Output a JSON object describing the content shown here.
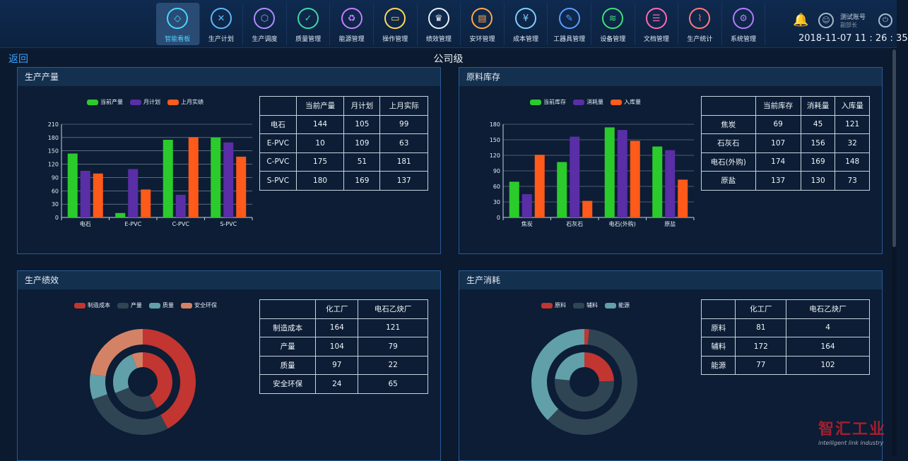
{
  "nav": [
    {
      "label": "智能看板",
      "icon": "diamond-icon",
      "glyph": "◇",
      "color": "#49d5ff"
    },
    {
      "label": "生产计划",
      "icon": "tools-icon",
      "glyph": "✕",
      "color": "#5cb8ff"
    },
    {
      "label": "生产调度",
      "icon": "cube-icon",
      "glyph": "⬡",
      "color": "#b08cff"
    },
    {
      "label": "质量管理",
      "icon": "shield-icon",
      "glyph": "✓",
      "color": "#3fd6a8"
    },
    {
      "label": "能源管理",
      "icon": "recycle-icon",
      "glyph": "♻",
      "color": "#c87cff"
    },
    {
      "label": "操作管理",
      "icon": "monitor-icon",
      "glyph": "▭",
      "color": "#ffd85a"
    },
    {
      "label": "绩效管理",
      "icon": "trophy-icon",
      "glyph": "♛",
      "color": "#e8eef6"
    },
    {
      "label": "安环管理",
      "icon": "clipboard-icon",
      "glyph": "▤",
      "color": "#ffa84a"
    },
    {
      "label": "成本管理",
      "icon": "yen-icon",
      "glyph": "¥",
      "color": "#7fd0ff"
    },
    {
      "label": "工器具管理",
      "icon": "wrench-icon",
      "glyph": "✎",
      "color": "#5c9bff"
    },
    {
      "label": "设备管理",
      "icon": "router-icon",
      "glyph": "≋",
      "color": "#3fe07a"
    },
    {
      "label": "文档管理",
      "icon": "document-icon",
      "glyph": "☰",
      "color": "#ff6ab0"
    },
    {
      "label": "生产统计",
      "icon": "line-chart-icon",
      "glyph": "⌇",
      "color": "#ff7a7a"
    },
    {
      "label": "系统管理",
      "icon": "gear-icon",
      "glyph": "⚙",
      "color": "#b47cff"
    }
  ],
  "user": {
    "name": "测试账号",
    "role": "副部长"
  },
  "datetime": "2018-11-07 11 : 26 : 35",
  "back_label": "返回",
  "level_title": "公司级",
  "panels": {
    "output": {
      "title": "生产产量",
      "table": {
        "headers": [
          "",
          "当前产量",
          "月计划",
          "上月实际"
        ],
        "rows": [
          [
            "电石",
            "144",
            "105",
            "99"
          ],
          [
            "E-PVC",
            "10",
            "109",
            "63"
          ],
          [
            "C-PVC",
            "175",
            "51",
            "181"
          ],
          [
            "S-PVC",
            "180",
            "169",
            "137"
          ]
        ]
      }
    },
    "stock": {
      "title": "原料库存",
      "table": {
        "headers": [
          "",
          "当前库存",
          "消耗量",
          "入库量"
        ],
        "rows": [
          [
            "焦炭",
            "69",
            "45",
            "121"
          ],
          [
            "石灰石",
            "107",
            "156",
            "32"
          ],
          [
            "电石(外购)",
            "174",
            "169",
            "148"
          ],
          [
            "原盐",
            "137",
            "130",
            "73"
          ]
        ]
      }
    },
    "perf": {
      "title": "生产绩效",
      "table": {
        "headers": [
          "",
          "化工厂",
          "电石乙炔厂"
        ],
        "rows": [
          [
            "制造成本",
            "164",
            "121"
          ],
          [
            "产量",
            "104",
            "79"
          ],
          [
            "质量",
            "97",
            "22"
          ],
          [
            "安全环保",
            "24",
            "65"
          ]
        ]
      }
    },
    "consume": {
      "title": "生产消耗",
      "table": {
        "headers": [
          "",
          "化工厂",
          "电石乙炔厂"
        ],
        "rows": [
          [
            "原料",
            "81",
            "4"
          ],
          [
            "辅料",
            "172",
            "164"
          ],
          [
            "能源",
            "77",
            "102"
          ]
        ]
      }
    }
  },
  "chart_data": [
    {
      "type": "bar",
      "categories": [
        "电石",
        "E-PVC",
        "C-PVC",
        "S-PVC"
      ],
      "series": [
        {
          "name": "当前产量",
          "values": [
            144,
            10,
            175,
            180
          ],
          "color": "#2ccb2c"
        },
        {
          "name": "月计划",
          "values": [
            105,
            109,
            51,
            169
          ],
          "color": "#5a2ea6"
        },
        {
          "name": "上月实绩",
          "values": [
            99,
            63,
            181,
            137
          ],
          "color": "#ff5a1a"
        }
      ],
      "yticks": [
        0,
        30,
        60,
        90,
        120,
        150,
        180,
        210
      ],
      "ylim": [
        0,
        210
      ],
      "grid": true,
      "legend": "top"
    },
    {
      "type": "bar",
      "categories": [
        "焦炭",
        "石灰石",
        "电石(外购)",
        "原盐"
      ],
      "series": [
        {
          "name": "当前库存",
          "values": [
            69,
            107,
            174,
            137
          ],
          "color": "#2ccb2c"
        },
        {
          "name": "消耗量",
          "values": [
            45,
            156,
            169,
            130
          ],
          "color": "#5a2ea6"
        },
        {
          "name": "入库量",
          "values": [
            121,
            32,
            148,
            73
          ],
          "color": "#ff5a1a"
        }
      ],
      "yticks": [
        0,
        30,
        60,
        90,
        120,
        150,
        180
      ],
      "ylim": [
        0,
        180
      ],
      "grid": true,
      "legend": "top"
    },
    {
      "type": "pie",
      "subtype": "nested-donut",
      "categories": [
        "制造成本",
        "产量",
        "质量",
        "安全环保"
      ],
      "colors": [
        "#c23531",
        "#2f4554",
        "#61a0a8",
        "#d48265"
      ],
      "series": [
        {
          "values": [
            121,
            79,
            22,
            65
          ]
        },
        {
          "values": [
            164,
            104,
            97,
            24
          ]
        }
      ],
      "legend": "top"
    },
    {
      "type": "pie",
      "subtype": "nested-donut",
      "categories": [
        "原料",
        "辅料",
        "能源"
      ],
      "colors": [
        "#c23531",
        "#2f4554",
        "#61a0a8"
      ],
      "series": [
        {
          "values": [
            4,
            164,
            102
          ]
        },
        {
          "values": [
            81,
            172,
            77
          ]
        }
      ],
      "legend": "top"
    }
  ]
}
